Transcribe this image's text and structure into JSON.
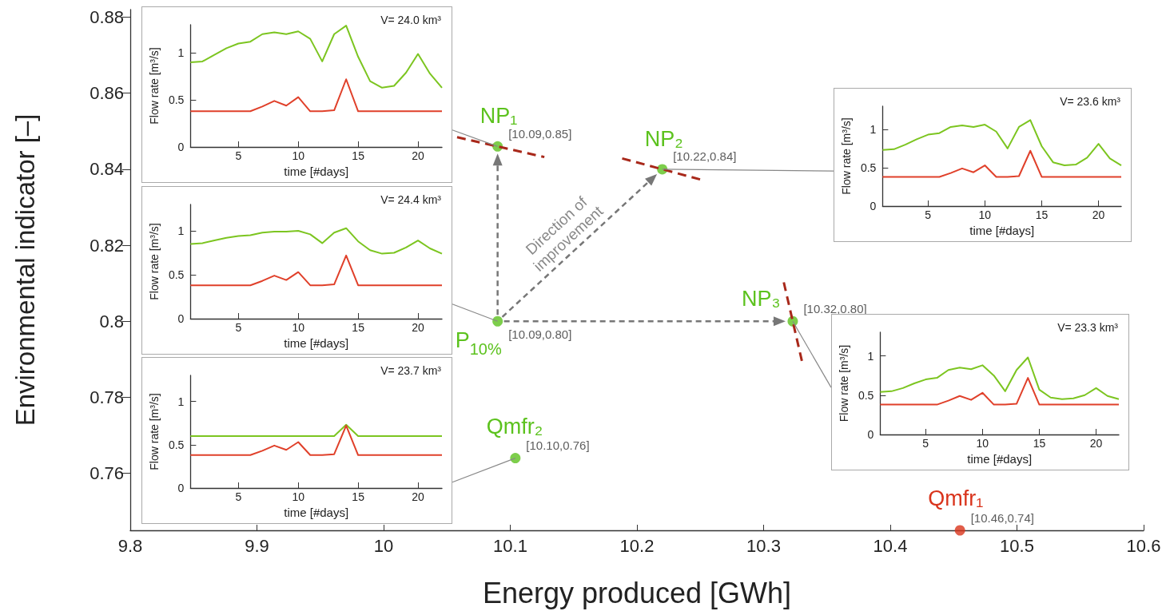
{
  "chart_data": [
    {
      "type": "scatter",
      "xlabel": "Energy produced [GWh]",
      "ylabel": "Environmental indicator [–]",
      "x": [
        10.09,
        10.22,
        10.09,
        10.323,
        10.104,
        10.455
      ],
      "values": [
        0.846,
        0.84,
        0.8,
        0.8,
        0.764,
        0.745
      ],
      "colors": [
        "#5cc21e",
        "#5cc21e",
        "#5cc21e",
        "#5cc21e",
        "#5cc21e",
        "#d9341c"
      ],
      "value_labels": [
        "[10.09,0.85]",
        "[10.22,0.84]",
        "[10.09,0.80]",
        "[10.32,0.80]",
        "[10.10,0.76]",
        "[10.46,0.74]"
      ],
      "annotations": [
        {
          "text": "NP₁",
          "x": 10.09,
          "y": 0.846
        },
        {
          "text": "NP₂",
          "x": 10.22,
          "y": 0.84
        },
        {
          "text": "P$_{10%}$",
          "x": 10.09,
          "y": 0.8
        },
        {
          "text": "NP₃",
          "x": 10.323,
          "y": 0.8
        },
        {
          "text": "Qmfr₂",
          "x": 10.104,
          "y": 0.764
        },
        {
          "text": "Qmfr₁",
          "x": 10.455,
          "y": 0.745
        },
        "Direction of\nimprovement"
      ],
      "xlim": [
        9.8,
        10.6
      ],
      "ylim": [
        0.745,
        0.882
      ],
      "xticks": [
        9.8,
        9.9,
        10,
        10.1,
        10.2,
        10.3,
        10.4,
        10.5,
        10.6
      ],
      "yticks": [
        0.76,
        0.78,
        0.8,
        0.82,
        0.84,
        0.86,
        0.88
      ],
      "marker": "circle"
    },
    {
      "type": "line",
      "title": "V= 24.0 km³",
      "xlabel": "time [#days]",
      "ylabel": "Flow rate [m³/s]",
      "x": [
        1,
        2,
        3,
        4,
        5,
        6,
        7,
        8,
        9,
        10,
        11,
        12,
        13,
        14,
        15,
        16,
        17,
        18,
        19,
        20,
        21,
        22
      ],
      "series": [
        {
          "color": "#7cc520",
          "values": [
            0.9,
            0.91,
            0.98,
            1.05,
            1.1,
            1.12,
            1.2,
            1.22,
            1.2,
            1.23,
            1.15,
            0.91,
            1.2,
            1.29,
            0.96,
            0.7,
            0.63,
            0.65,
            0.79,
            0.99,
            0.78,
            0.63
          ]
        },
        {
          "color": "#e0402a",
          "values": [
            0.38,
            0.38,
            0.38,
            0.38,
            0.38,
            0.38,
            0.43,
            0.49,
            0.44,
            0.53,
            0.38,
            0.38,
            0.39,
            0.72,
            0.38,
            0.38,
            0.38,
            0.38,
            0.38,
            0.38,
            0.38,
            0.38
          ]
        }
      ],
      "xlim": [
        1,
        22
      ],
      "ylim": [
        0,
        1.3
      ],
      "xticks": [
        5,
        10,
        15,
        20
      ],
      "yticks": [
        0,
        0.5,
        1
      ]
    },
    {
      "type": "line",
      "title": "V= 24.4 km³",
      "xlabel": "time [#days]",
      "ylabel": "Flow rate [m³/s]",
      "x": [
        1,
        2,
        3,
        4,
        5,
        6,
        7,
        8,
        9,
        10,
        11,
        12,
        13,
        14,
        15,
        16,
        17,
        18,
        19,
        20,
        21,
        22
      ],
      "series": [
        {
          "color": "#7cc520",
          "values": [
            0.85,
            0.86,
            0.89,
            0.92,
            0.94,
            0.95,
            0.98,
            0.99,
            0.99,
            1.0,
            0.96,
            0.86,
            0.98,
            1.03,
            0.88,
            0.78,
            0.74,
            0.75,
            0.81,
            0.89,
            0.8,
            0.74
          ]
        },
        {
          "color": "#e0402a",
          "values": [
            0.38,
            0.38,
            0.38,
            0.38,
            0.38,
            0.38,
            0.43,
            0.49,
            0.44,
            0.53,
            0.38,
            0.38,
            0.39,
            0.72,
            0.38,
            0.38,
            0.38,
            0.38,
            0.38,
            0.38,
            0.38,
            0.38
          ]
        }
      ],
      "xlim": [
        1,
        22
      ],
      "ylim": [
        0,
        1.3
      ],
      "xticks": [
        5,
        10,
        15,
        20
      ],
      "yticks": [
        0,
        0.5,
        1
      ]
    },
    {
      "type": "line",
      "title": "V= 23.7 km³",
      "xlabel": "time [#days]",
      "ylabel": "Flow rate [m³/s]",
      "x": [
        1,
        2,
        3,
        4,
        5,
        6,
        7,
        8,
        9,
        10,
        11,
        12,
        13,
        14,
        15,
        16,
        17,
        18,
        19,
        20,
        21,
        22
      ],
      "series": [
        {
          "color": "#7cc520",
          "values": [
            0.6,
            0.6,
            0.6,
            0.6,
            0.6,
            0.6,
            0.6,
            0.6,
            0.6,
            0.6,
            0.6,
            0.6,
            0.6,
            0.73,
            0.6,
            0.6,
            0.6,
            0.6,
            0.6,
            0.6,
            0.6,
            0.6
          ]
        },
        {
          "color": "#e0402a",
          "values": [
            0.38,
            0.38,
            0.38,
            0.38,
            0.38,
            0.38,
            0.43,
            0.49,
            0.44,
            0.53,
            0.38,
            0.38,
            0.39,
            0.72,
            0.38,
            0.38,
            0.38,
            0.38,
            0.38,
            0.38,
            0.38,
            0.38
          ]
        }
      ],
      "xlim": [
        1,
        22
      ],
      "ylim": [
        0,
        1.3
      ],
      "xticks": [
        5,
        10,
        15,
        20
      ],
      "yticks": [
        0,
        0.5,
        1
      ]
    },
    {
      "type": "line",
      "title": "V= 23.6 km³",
      "xlabel": "time [#days]",
      "ylabel": "Flow rate [m³/s]",
      "x": [
        1,
        2,
        3,
        4,
        5,
        6,
        7,
        8,
        9,
        10,
        11,
        12,
        13,
        14,
        15,
        16,
        17,
        18,
        19,
        20,
        21,
        22
      ],
      "series": [
        {
          "color": "#7cc520",
          "values": [
            0.73,
            0.74,
            0.8,
            0.87,
            0.93,
            0.95,
            1.03,
            1.05,
            1.03,
            1.06,
            0.97,
            0.75,
            1.03,
            1.12,
            0.78,
            0.57,
            0.53,
            0.54,
            0.63,
            0.81,
            0.62,
            0.53
          ]
        },
        {
          "color": "#e0402a",
          "values": [
            0.38,
            0.38,
            0.38,
            0.38,
            0.38,
            0.38,
            0.43,
            0.49,
            0.44,
            0.53,
            0.38,
            0.38,
            0.39,
            0.72,
            0.38,
            0.38,
            0.38,
            0.38,
            0.38,
            0.38,
            0.38,
            0.38
          ]
        }
      ],
      "xlim": [
        1,
        22
      ],
      "ylim": [
        0,
        1.3
      ],
      "xticks": [
        5,
        10,
        15,
        20
      ],
      "yticks": [
        0,
        0.5,
        1
      ]
    },
    {
      "type": "line",
      "title": "V= 23.3 km³",
      "xlabel": "time [#days]",
      "ylabel": "Flow rate [m³/s]",
      "x": [
        1,
        2,
        3,
        4,
        5,
        6,
        7,
        8,
        9,
        10,
        11,
        12,
        13,
        14,
        15,
        16,
        17,
        18,
        19,
        20,
        21,
        22
      ],
      "series": [
        {
          "color": "#7cc520",
          "values": [
            0.54,
            0.55,
            0.59,
            0.65,
            0.7,
            0.72,
            0.82,
            0.85,
            0.83,
            0.88,
            0.75,
            0.55,
            0.82,
            0.98,
            0.57,
            0.47,
            0.45,
            0.46,
            0.5,
            0.59,
            0.49,
            0.45
          ]
        },
        {
          "color": "#e0402a",
          "values": [
            0.38,
            0.38,
            0.38,
            0.38,
            0.38,
            0.38,
            0.43,
            0.49,
            0.44,
            0.53,
            0.38,
            0.38,
            0.39,
            0.72,
            0.38,
            0.38,
            0.38,
            0.38,
            0.38,
            0.38,
            0.38,
            0.38
          ]
        }
      ],
      "xlim": [
        1,
        22
      ],
      "ylim": [
        0,
        1.3
      ],
      "xticks": [
        5,
        10,
        15,
        20
      ],
      "yticks": [
        0,
        0.5,
        1
      ]
    }
  ]
}
